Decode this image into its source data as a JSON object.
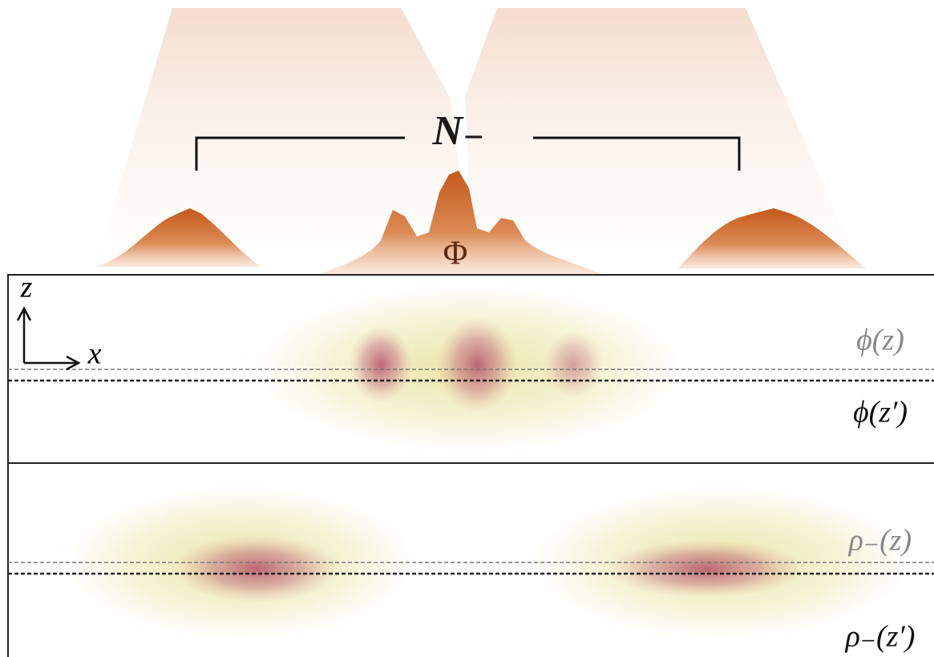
{
  "labels": {
    "total": "N₋",
    "field": "Φ",
    "axis_z": "z",
    "axis_x": "x",
    "phi_z": "ϕ(z)",
    "phi_zp": "ϕ(z′)",
    "rho_z": "ρ₋(z)",
    "rho_zp": "ρ₋(z′)"
  }
}
